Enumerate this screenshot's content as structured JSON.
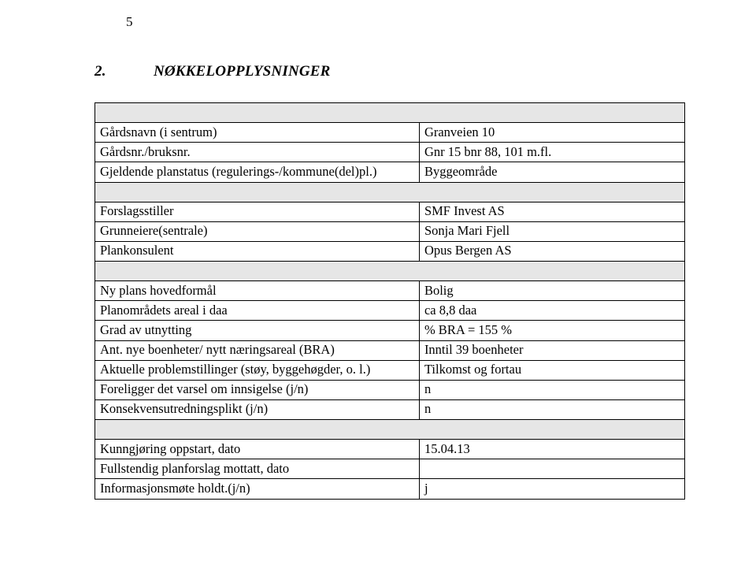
{
  "pageNumber": "5",
  "heading": {
    "num": "2.",
    "title": "NØKKELOPPLYSNINGER"
  },
  "table": {
    "columns": {
      "col1_width_pct": 55,
      "col2_width_pct": 45
    },
    "cell_bg_gray": "#e6e6e6",
    "cell_bg_white": "#ffffff",
    "border_color": "#000000",
    "font_size_pt": 12,
    "rows": [
      {
        "type": "merged_gray"
      },
      {
        "c1": "Gårdsnavn (i sentrum)",
        "c2": "Granveien 10"
      },
      {
        "c1": "Gårdsnr./bruksnr.",
        "c2": "Gnr 15 bnr 88, 101 m.fl."
      },
      {
        "c1": "Gjeldende planstatus (regulerings-/kommune(del)pl.)",
        "c2": "Byggeområde"
      },
      {
        "type": "merged_gray"
      },
      {
        "c1": "Forslagsstiller",
        "c2": "SMF Invest AS"
      },
      {
        "c1": "Grunneiere(sentrale)",
        "c2": "Sonja Mari Fjell"
      },
      {
        "c1": "Plankonsulent",
        "c2": "Opus Bergen AS"
      },
      {
        "type": "merged_gray"
      },
      {
        "c1": "Ny plans hovedformål",
        "c2": "Bolig"
      },
      {
        "c1": "Planområdets areal i daa",
        "c2": "ca 8,8 daa"
      },
      {
        "c1": "Grad av utnytting",
        "c2": "% BRA = 155 %"
      },
      {
        "c1": "Ant. nye boenheter/ nytt næringsareal (BRA)",
        "c2": "Inntil 39 boenheter"
      },
      {
        "c1": "Aktuelle problemstillinger (støy, byggehøgder, o. l.)",
        "c2": "Tilkomst og fortau"
      },
      {
        "c1": "Foreligger det varsel om innsigelse (j/n)",
        "c2": "n"
      },
      {
        "c1": "Konsekvensutredningsplikt (j/n)",
        "c2": "n"
      },
      {
        "type": "merged_gray"
      },
      {
        "c1": "Kunngjøring oppstart, dato",
        "c2": "15.04.13"
      },
      {
        "c1": "Fullstendig planforslag mottatt, dato",
        "c2": ""
      },
      {
        "c1": "Informasjonsmøte holdt.(j/n)",
        "c2": "j"
      }
    ]
  }
}
